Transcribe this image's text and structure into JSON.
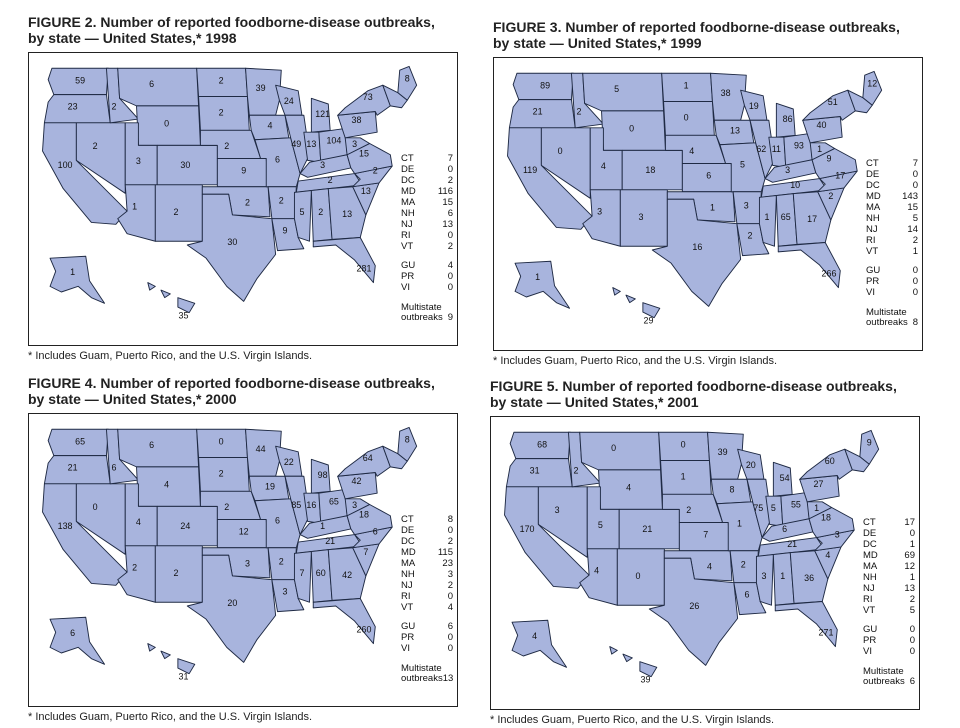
{
  "footnote": "* Includes Guam, Puerto Rico, and the U.S. Virgin Islands.",
  "multistate_label_1": "Multistate",
  "multistate_label_2": "outbreaks",
  "fill_color": "#a8b4dd",
  "figures": [
    {
      "title_line1": "FIGURE 2. Number of reported foodborne-disease outbreaks,",
      "title_line2": "by state — United States,* 1998",
      "states": {
        "WA": "59",
        "OR": "23",
        "CA": "100",
        "NV": "2",
        "ID": "2",
        "MT": "6",
        "WY": "0",
        "UT": "3",
        "AZ": "1",
        "CO": "30",
        "NM": "2",
        "ND": "2",
        "SD": "2",
        "NE": "2",
        "KS": "9",
        "OK": "2",
        "TX": "30",
        "MN": "39",
        "IA": "4",
        "MO": "6",
        "AR": "2",
        "LA": "9",
        "WI": "24",
        "IL": "49",
        "MI": "121",
        "IN": "13",
        "OH": "104",
        "KY": "3",
        "TN": "2",
        "MS": "5",
        "AL": "2",
        "GA": "13",
        "FL": "281",
        "SC": "13",
        "NC": "2",
        "VA": "15",
        "WV": "3",
        "PA": "38",
        "NY": "73",
        "ME": "8",
        "AK": "1",
        "HI": "35"
      },
      "side": [
        [
          "CT",
          "7"
        ],
        [
          "DE",
          "0"
        ],
        [
          "DC",
          "2"
        ],
        [
          "MD",
          "116"
        ],
        [
          "MA",
          "15"
        ],
        [
          "NH",
          "6"
        ],
        [
          "NJ",
          "13"
        ],
        [
          "RI",
          "0"
        ],
        [
          "VT",
          "2"
        ],
        [
          "GU",
          "4"
        ],
        [
          "PR",
          "0"
        ],
        [
          "VI",
          "0"
        ]
      ],
      "multistate": "9"
    },
    {
      "title_line1": "FIGURE 3. Number of reported foodborne-disease outbreaks,",
      "title_line2": "by state — United States,* 1999",
      "states": {
        "WA": "89",
        "OR": "21",
        "CA": "119",
        "NV": "0",
        "ID": "2",
        "MT": "5",
        "WY": "0",
        "UT": "4",
        "AZ": "3",
        "CO": "18",
        "NM": "3",
        "ND": "1",
        "SD": "0",
        "NE": "4",
        "KS": "6",
        "OK": "1",
        "TX": "16",
        "MN": "38",
        "IA": "13",
        "MO": "5",
        "AR": "3",
        "LA": "2",
        "WI": "19",
        "IL": "62",
        "MI": "86",
        "IN": "11",
        "OH": "93",
        "KY": "3",
        "TN": "10",
        "MS": "1",
        "AL": "65",
        "GA": "17",
        "FL": "266",
        "SC": "2",
        "NC": "17",
        "VA": "9",
        "WV": "1",
        "PA": "40",
        "NY": "51",
        "ME": "12",
        "AK": "1",
        "HI": "29"
      },
      "side": [
        [
          "CT",
          "7"
        ],
        [
          "DE",
          "0"
        ],
        [
          "DC",
          "0"
        ],
        [
          "MD",
          "143"
        ],
        [
          "MA",
          "15"
        ],
        [
          "NH",
          "5"
        ],
        [
          "NJ",
          "14"
        ],
        [
          "RI",
          "2"
        ],
        [
          "VT",
          "1"
        ],
        [
          "GU",
          "0"
        ],
        [
          "PR",
          "0"
        ],
        [
          "VI",
          "0"
        ]
      ],
      "multistate": "8"
    },
    {
      "title_line1": "FIGURE 4. Number of reported foodborne-disease outbreaks,",
      "title_line2": "by state — United States,* 2000",
      "states": {
        "WA": "65",
        "OR": "21",
        "CA": "138",
        "NV": "0",
        "ID": "6",
        "MT": "6",
        "WY": "4",
        "UT": "4",
        "AZ": "2",
        "CO": "24",
        "NM": "2",
        "ND": "0",
        "SD": "2",
        "NE": "2",
        "KS": "12",
        "OK": "3",
        "TX": "20",
        "MN": "44",
        "IA": "19",
        "MO": "6",
        "AR": "2",
        "LA": "3",
        "WI": "22",
        "IL": "85",
        "MI": "98",
        "IN": "16",
        "OH": "65",
        "KY": "1",
        "TN": "21",
        "MS": "7",
        "AL": "60",
        "GA": "42",
        "FL": "260",
        "SC": "7",
        "NC": "6",
        "VA": "18",
        "WV": "3",
        "PA": "42",
        "NY": "64",
        "ME": "8",
        "AK": "6",
        "HI": "31"
      },
      "side": [
        [
          "CT",
          "8"
        ],
        [
          "DE",
          "0"
        ],
        [
          "DC",
          "2"
        ],
        [
          "MD",
          "115"
        ],
        [
          "MA",
          "23"
        ],
        [
          "NH",
          "3"
        ],
        [
          "NJ",
          "2"
        ],
        [
          "RI",
          "0"
        ],
        [
          "VT",
          "4"
        ],
        [
          "GU",
          "6"
        ],
        [
          "PR",
          "0"
        ],
        [
          "VI",
          "0"
        ]
      ],
      "multistate": "13"
    },
    {
      "title_line1": "FIGURE 5. Number of reported foodborne-disease outbreaks,",
      "title_line2": "by state — United States,* 2001",
      "states": {
        "WA": "68",
        "OR": "31",
        "CA": "170",
        "NV": "3",
        "ID": "2",
        "MT": "0",
        "WY": "4",
        "UT": "5",
        "AZ": "4",
        "CO": "21",
        "NM": "0",
        "ND": "0",
        "SD": "1",
        "NE": "2",
        "KS": "7",
        "OK": "4",
        "TX": "26",
        "MN": "39",
        "IA": "8",
        "MO": "1",
        "AR": "2",
        "LA": "6",
        "WI": "20",
        "IL": "75",
        "MI": "54",
        "IN": "5",
        "OH": "55",
        "KY": "6",
        "TN": "21",
        "MS": "3",
        "AL": "1",
        "GA": "36",
        "FL": "271",
        "SC": "4",
        "NC": "3",
        "VA": "18",
        "WV": "1",
        "PA": "27",
        "NY": "60",
        "ME": "9",
        "AK": "4",
        "HI": "39"
      },
      "side": [
        [
          "CT",
          "17"
        ],
        [
          "DE",
          "0"
        ],
        [
          "DC",
          "1"
        ],
        [
          "MD",
          "69"
        ],
        [
          "MA",
          "12"
        ],
        [
          "NH",
          "1"
        ],
        [
          "NJ",
          "13"
        ],
        [
          "RI",
          "2"
        ],
        [
          "VT",
          "5"
        ],
        [
          "GU",
          "0"
        ],
        [
          "PR",
          "0"
        ],
        [
          "VI",
          "0"
        ]
      ],
      "multistate": "6"
    }
  ]
}
